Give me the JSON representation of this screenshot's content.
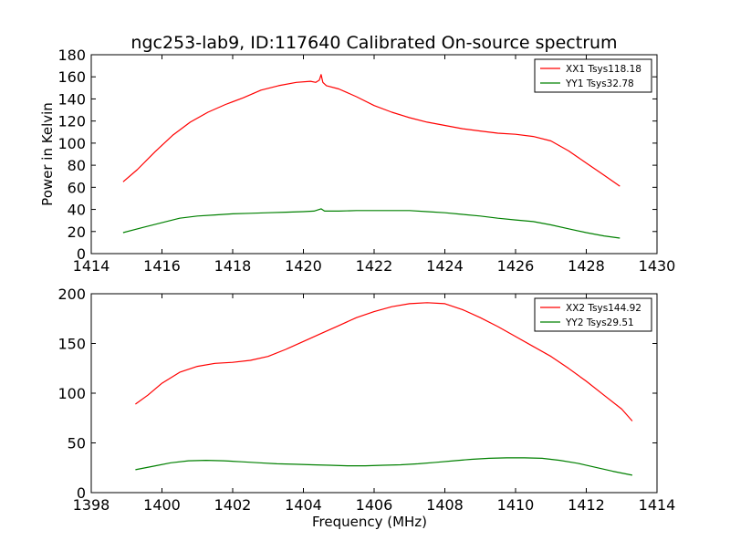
{
  "figure": {
    "title": "ngc253-lab9, ID:117640 Calibrated On-source spectrum"
  },
  "colors": {
    "series_xx": "#ff0000",
    "series_yy": "#008000",
    "axes": "#000000",
    "background": "#ffffff"
  },
  "chart_data": [
    {
      "type": "line",
      "title": "ngc253-lab9, ID:117640 Calibrated On-source spectrum",
      "xlabel": "",
      "ylabel": "Power in Kelvin",
      "xlim": [
        1414,
        1430
      ],
      "ylim": [
        0,
        180
      ],
      "xticks": [
        1414,
        1416,
        1418,
        1420,
        1422,
        1424,
        1426,
        1428,
        1430
      ],
      "yticks": [
        0,
        20,
        40,
        60,
        80,
        100,
        120,
        140,
        160,
        180
      ],
      "grid": false,
      "legend_position": "top-right",
      "series": [
        {
          "name": "XX1 Tsys118.18",
          "color": "#ff0000",
          "x": [
            1414.9,
            1415.3,
            1415.8,
            1416.3,
            1416.8,
            1417.3,
            1417.8,
            1418.3,
            1418.8,
            1419.3,
            1419.8,
            1420.2,
            1420.35,
            1420.45,
            1420.5,
            1420.55,
            1420.65,
            1421.0,
            1421.5,
            1422.0,
            1422.5,
            1423.0,
            1423.5,
            1424.0,
            1424.5,
            1425.0,
            1425.5,
            1426.0,
            1426.5,
            1427.0,
            1427.5,
            1428.0,
            1428.5,
            1428.95
          ],
          "y": [
            65,
            76,
            92,
            107,
            119,
            128,
            135,
            141,
            148,
            152,
            155,
            156,
            155,
            157,
            162,
            155,
            152,
            149,
            142,
            134,
            128,
            123,
            119,
            116,
            113,
            111,
            109,
            108,
            106,
            102,
            93,
            82,
            71,
            61
          ]
        },
        {
          "name": "YY1 Tsys32.78",
          "color": "#008000",
          "x": [
            1414.9,
            1415.5,
            1416.0,
            1416.5,
            1417.0,
            1417.5,
            1418.0,
            1418.5,
            1419.0,
            1419.5,
            1420.0,
            1420.3,
            1420.5,
            1420.6,
            1421.0,
            1421.5,
            1422.0,
            1422.5,
            1423.0,
            1423.5,
            1424.0,
            1424.5,
            1425.0,
            1425.5,
            1426.0,
            1426.5,
            1427.0,
            1427.5,
            1428.0,
            1428.5,
            1428.95
          ],
          "y": [
            19,
            24,
            28,
            32,
            34,
            35,
            36,
            36.5,
            37,
            37.5,
            38,
            38.5,
            40.5,
            38.5,
            38.5,
            39,
            39,
            39,
            39,
            38,
            37,
            35.5,
            34,
            32,
            30.5,
            29,
            26,
            22.5,
            19,
            16,
            14
          ]
        }
      ]
    },
    {
      "type": "line",
      "title": "",
      "xlabel": "Frequency (MHz)",
      "ylabel": "",
      "xlim": [
        1398,
        1414
      ],
      "ylim": [
        0,
        200
      ],
      "xticks": [
        1398,
        1400,
        1402,
        1404,
        1406,
        1408,
        1410,
        1412,
        1414
      ],
      "yticks": [
        0,
        50,
        100,
        150,
        200
      ],
      "grid": false,
      "legend_position": "top-right",
      "series": [
        {
          "name": "XX2 Tsys144.92",
          "color": "#ff0000",
          "x": [
            1399.25,
            1399.6,
            1400.0,
            1400.5,
            1401.0,
            1401.5,
            1402.0,
            1402.5,
            1403.0,
            1403.5,
            1404.0,
            1404.5,
            1405.0,
            1405.5,
            1406.0,
            1406.5,
            1407.0,
            1407.5,
            1408.0,
            1408.5,
            1409.0,
            1409.5,
            1410.0,
            1410.5,
            1411.0,
            1411.5,
            1412.0,
            1412.5,
            1413.0,
            1413.3
          ],
          "y": [
            89,
            98,
            110,
            121,
            127,
            130,
            131,
            133,
            137,
            144,
            152,
            160,
            168,
            176,
            182,
            187,
            190,
            191,
            190,
            184,
            176,
            167,
            157,
            147,
            137,
            125,
            112,
            98,
            84,
            72
          ]
        },
        {
          "name": "YY2 Tsys29.51",
          "color": "#008000",
          "x": [
            1399.25,
            1399.75,
            1400.25,
            1400.75,
            1401.25,
            1401.75,
            1402.25,
            1402.75,
            1403.25,
            1403.75,
            1404.25,
            1404.75,
            1405.25,
            1405.75,
            1406.25,
            1406.75,
            1407.25,
            1407.75,
            1408.25,
            1408.75,
            1409.25,
            1409.75,
            1410.25,
            1410.75,
            1411.25,
            1411.75,
            1412.25,
            1412.75,
            1413.3
          ],
          "y": [
            23,
            26.5,
            30,
            32,
            32.5,
            32,
            31,
            30,
            29,
            28.5,
            28,
            27.5,
            27,
            27,
            27.5,
            28,
            29,
            30.5,
            32,
            33.5,
            34.5,
            35,
            35,
            34.5,
            32.5,
            29.5,
            25.5,
            21.5,
            17.5
          ]
        }
      ]
    }
  ]
}
